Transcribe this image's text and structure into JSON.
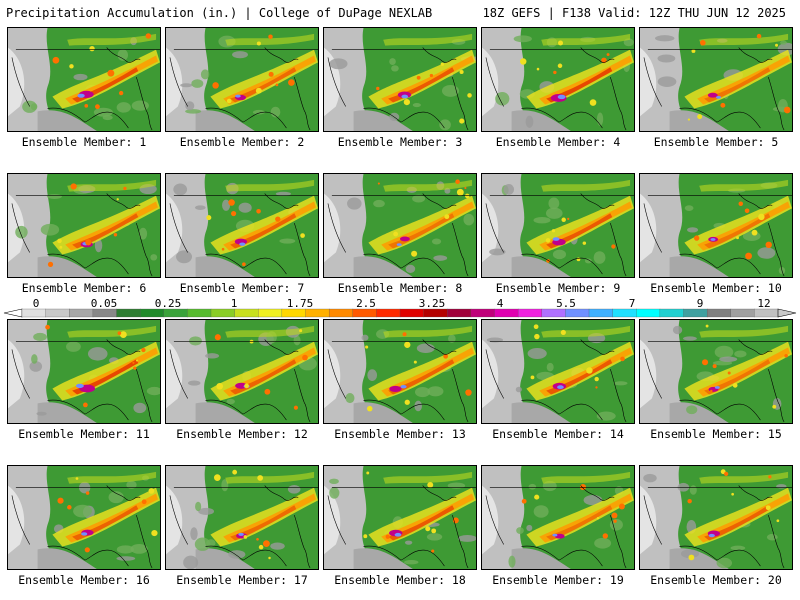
{
  "header": {
    "left_title": "Precipitation Accumulation (in.) | College of DuPage NEXLAB",
    "right_title": "18Z GEFS | F138 Valid: 12Z THU JUN 12 2025"
  },
  "colorbar": {
    "labels": [
      "0",
      "0.05",
      "0.25",
      "1",
      "1.75",
      "2.5",
      "3.25",
      "4",
      "5.5",
      "7",
      "9",
      "12"
    ],
    "colors": [
      "#e0e0e0",
      "#c8c8c8",
      "#a8a8a8",
      "#888888",
      "#2e7d32",
      "#1f8a2a",
      "#3aa33a",
      "#57bb2e",
      "#8acd26",
      "#c8e01e",
      "#f0f020",
      "#ffd700",
      "#ffb000",
      "#ff8a00",
      "#ff5a00",
      "#ff2a00",
      "#e00000",
      "#b40000",
      "#a0003a",
      "#c0007a",
      "#e000b0",
      "#f020e0",
      "#b070ff",
      "#7090ff",
      "#40b0ff",
      "#20e0ff",
      "#00ffff",
      "#20d0d0",
      "#40a0a0",
      "#808080",
      "#a0a0a0",
      "#c0c0c0"
    ]
  },
  "panels": [
    {
      "caption": "Ensemble Member: 1",
      "intensity": 0.9
    },
    {
      "caption": "Ensemble Member: 2",
      "intensity": 0.6
    },
    {
      "caption": "Ensemble Member: 3",
      "intensity": 0.8
    },
    {
      "caption": "Ensemble Member: 4",
      "intensity": 1.0
    },
    {
      "caption": "Ensemble Member: 5",
      "intensity": 0.5
    },
    {
      "caption": "Ensemble Member: 6",
      "intensity": 0.7
    },
    {
      "caption": "Ensemble Member: 7",
      "intensity": 0.7
    },
    {
      "caption": "Ensemble Member: 8",
      "intensity": 0.5
    },
    {
      "caption": "Ensemble Member: 9",
      "intensity": 0.8
    },
    {
      "caption": "Ensemble Member: 10",
      "intensity": 0.5
    },
    {
      "caption": "Ensemble Member: 11",
      "intensity": 1.0
    },
    {
      "caption": "Ensemble Member: 12",
      "intensity": 0.7
    },
    {
      "caption": "Ensemble Member: 13",
      "intensity": 0.7
    },
    {
      "caption": "Ensemble Member: 14",
      "intensity": 0.8
    },
    {
      "caption": "Ensemble Member: 15",
      "intensity": 0.5
    },
    {
      "caption": "Ensemble Member: 16",
      "intensity": 0.7
    },
    {
      "caption": "Ensemble Member: 17",
      "intensity": 0.6
    },
    {
      "caption": "Ensemble Member: 18",
      "intensity": 0.8
    },
    {
      "caption": "Ensemble Member: 19",
      "intensity": 0.5
    },
    {
      "caption": "Ensemble Member: 20",
      "intensity": 0.7
    }
  ]
}
